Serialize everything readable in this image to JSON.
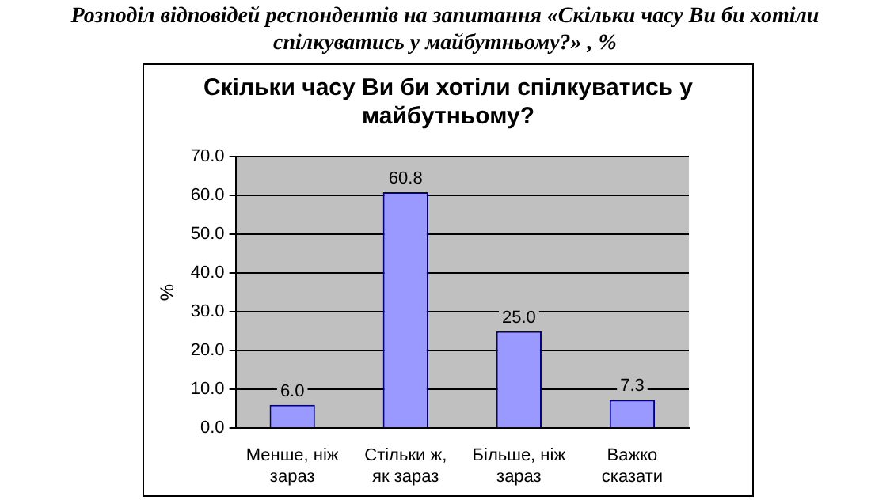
{
  "chart_data": {
    "type": "bar",
    "title": "Розподіл відповідей респондентів на запитання «Скільки часу Ви би хотіли спілкуватись у майбутньому?» , %",
    "subtitle": "Скільки часу Ви би хотіли спілкуватись у майбутньому?",
    "ylabel": "%",
    "categories": [
      "Менше, ніж зараз",
      "Стільки ж, як зараз",
      "Більше, ніж зараз",
      "Важко сказати"
    ],
    "values": [
      6.0,
      60.8,
      25.0,
      7.3
    ],
    "value_labels": [
      "6.0",
      "60.8",
      "25.0",
      "7.3"
    ],
    "color": "#9999ff",
    "ylim": [
      0,
      70
    ],
    "yticks": [
      {
        "value": 0,
        "label": "0.0"
      },
      {
        "value": 10,
        "label": "10.0"
      },
      {
        "value": 20,
        "label": "20.0"
      },
      {
        "value": 30,
        "label": "30.0"
      },
      {
        "value": 40,
        "label": "40.0"
      },
      {
        "value": 50,
        "label": "50.0"
      },
      {
        "value": 60,
        "label": "60.0"
      },
      {
        "value": 70,
        "label": "70.0"
      }
    ],
    "grid": "y",
    "legend": false
  }
}
